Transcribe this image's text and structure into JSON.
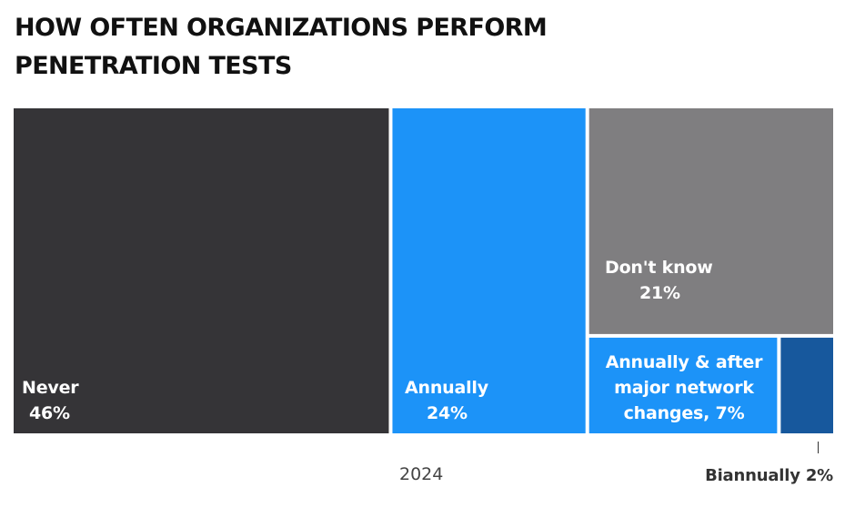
{
  "title": {
    "line1": "HOW OFTEN ORGANIZATIONS PERFORM",
    "line2": "PENETRATION TESTS"
  },
  "chart_data": {
    "type": "treemap",
    "title": "HOW OFTEN ORGANIZATIONS PERFORM PENETRATION TESTS",
    "category_label": "2024",
    "unit": "%",
    "items": [
      {
        "label": "Never",
        "value": 46,
        "value_text": "46%",
        "color": "#353437"
      },
      {
        "label": "Annually",
        "value": 24,
        "value_text": "24%",
        "color": "#1c93f8"
      },
      {
        "label": "Don't know",
        "value": 21,
        "value_text": "21%",
        "color": "#7f7e80"
      },
      {
        "label": "Annually & after major network changes",
        "label_lines": [
          "Annually & after",
          "major network",
          "changes, 7%"
        ],
        "value": 7,
        "value_text": "7%",
        "color": "#1c93f8"
      },
      {
        "label": "Biannually",
        "value": 2,
        "value_text": "2%",
        "color": "#17589d"
      }
    ]
  },
  "axis": {
    "x_label": "2024"
  },
  "callout": {
    "text": "Biannually 2%"
  }
}
